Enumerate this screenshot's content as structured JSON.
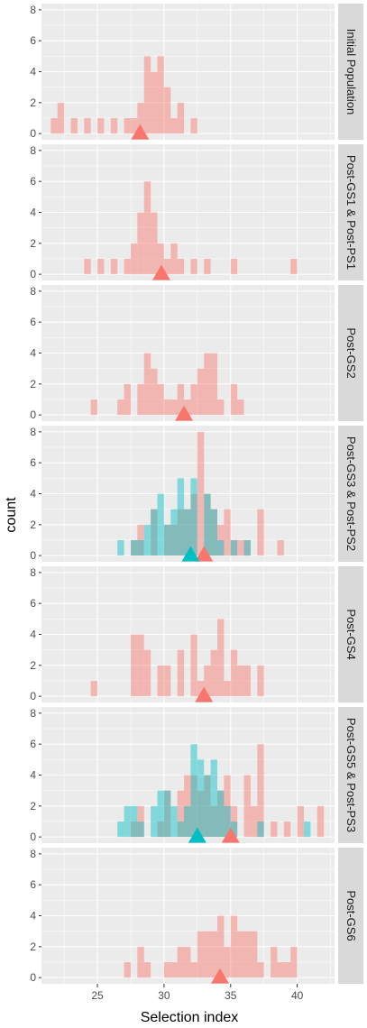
{
  "chart_data": {
    "type": "histogram",
    "xlabel": "Selection index",
    "ylabel": "count",
    "xlim": [
      20.8,
      42.8
    ],
    "ylim": [
      -0.4,
      8.4
    ],
    "x_ticks": [
      25,
      30,
      35,
      40
    ],
    "y_ticks": [
      0,
      2,
      4,
      6,
      8
    ],
    "bin_width": 0.5,
    "grid": true,
    "colors": {
      "series_a": "#F8766D",
      "series_b": "#00BFC4",
      "panel_bg": "#EBEBEB",
      "grid": "#FFFFFF",
      "strip_bg": "#D9D9D9"
    },
    "panels": [
      {
        "label": "Initial Population",
        "series": [
          {
            "key": "a",
            "color": "#F8766D",
            "bins": [
              [
                21.5,
                1
              ],
              [
                22,
                2
              ],
              [
                23,
                1
              ],
              [
                24,
                1
              ],
              [
                25,
                1
              ],
              [
                26,
                1
              ],
              [
                27,
                1
              ],
              [
                27.5,
                1
              ],
              [
                28,
                2
              ],
              [
                28.5,
                5
              ],
              [
                29,
                4
              ],
              [
                29.5,
                5
              ],
              [
                30,
                3
              ],
              [
                30.5,
                1
              ],
              [
                31,
                2
              ],
              [
                32,
                1
              ]
            ],
            "marker": 28.2
          }
        ]
      },
      {
        "label": "Post-GS1 & Post-PS1",
        "series": [
          {
            "key": "a",
            "color": "#F8766D",
            "bins": [
              [
                24,
                1
              ],
              [
                25,
                1
              ],
              [
                26,
                1
              ],
              [
                27,
                1
              ],
              [
                27.5,
                2
              ],
              [
                28,
                4
              ],
              [
                28.5,
                6
              ],
              [
                29,
                4
              ],
              [
                29.5,
                2
              ],
              [
                30,
                1
              ],
              [
                30.5,
                2
              ],
              [
                31,
                1
              ],
              [
                32,
                1
              ],
              [
                33,
                1
              ],
              [
                35,
                1
              ],
              [
                39.5,
                1
              ]
            ],
            "marker": 29.8
          }
        ]
      },
      {
        "label": "Post-GS2",
        "series": [
          {
            "key": "a",
            "color": "#F8766D",
            "bins": [
              [
                24.5,
                1
              ],
              [
                26.5,
                1
              ],
              [
                27,
                2
              ],
              [
                28,
                2
              ],
              [
                28.5,
                4
              ],
              [
                29,
                3
              ],
              [
                29.5,
                2
              ],
              [
                30,
                1
              ],
              [
                30.5,
                1
              ],
              [
                31,
                2
              ],
              [
                31.5,
                1
              ],
              [
                32,
                2
              ],
              [
                32.5,
                3
              ],
              [
                33,
                4
              ],
              [
                33.5,
                4
              ],
              [
                34,
                1
              ],
              [
                35,
                2
              ],
              [
                35.5,
                1
              ]
            ],
            "marker": 31.5
          }
        ]
      },
      {
        "label": "Post-GS3 & Post-PS2",
        "series": [
          {
            "key": "a",
            "color": "#F8766D",
            "bins": [
              [
                27.5,
                1
              ],
              [
                28,
                2
              ],
              [
                29,
                3
              ],
              [
                30,
                2
              ],
              [
                30.5,
                2
              ],
              [
                31,
                3
              ],
              [
                31.5,
                3
              ],
              [
                32,
                4
              ],
              [
                32.5,
                8
              ],
              [
                33,
                4
              ],
              [
                33.5,
                3
              ],
              [
                34,
                2
              ],
              [
                34.5,
                3
              ],
              [
                35,
                1
              ],
              [
                35.5,
                1
              ],
              [
                36,
                1
              ],
              [
                37,
                3
              ],
              [
                38.5,
                1
              ]
            ],
            "marker": 33.0
          },
          {
            "key": "b",
            "color": "#00BFC4",
            "bins": [
              [
                26.5,
                1
              ],
              [
                27.5,
                1
              ],
              [
                28,
                1
              ],
              [
                28.5,
                2
              ],
              [
                29,
                3
              ],
              [
                29.5,
                4
              ],
              [
                30,
                2
              ],
              [
                30.5,
                3
              ],
              [
                31,
                5
              ],
              [
                31.5,
                3
              ],
              [
                32,
                5
              ],
              [
                33,
                4
              ],
              [
                33.5,
                3
              ],
              [
                34,
                1
              ],
              [
                35,
                1
              ],
              [
                36,
                1
              ]
            ],
            "marker": 32.0
          }
        ]
      },
      {
        "label": "Post-GS4",
        "series": [
          {
            "key": "a",
            "color": "#F8766D",
            "bins": [
              [
                24.5,
                1
              ],
              [
                27.5,
                4
              ],
              [
                28,
                4
              ],
              [
                28.5,
                3
              ],
              [
                29.5,
                2
              ],
              [
                30,
                2
              ],
              [
                31,
                3
              ],
              [
                32,
                4
              ],
              [
                32.5,
                1
              ],
              [
                33,
                2
              ],
              [
                33.5,
                3
              ],
              [
                34,
                5
              ],
              [
                34.5,
                1
              ],
              [
                35,
                3
              ],
              [
                35.5,
                2
              ],
              [
                36,
                2
              ],
              [
                37,
                2
              ]
            ],
            "marker": 33.0
          }
        ]
      },
      {
        "label": "Post-GS5 & Post-PS3",
        "series": [
          {
            "key": "a",
            "color": "#F8766D",
            "bins": [
              [
                27.5,
                1
              ],
              [
                28,
                2
              ],
              [
                29.5,
                1
              ],
              [
                30,
                3
              ],
              [
                31,
                3
              ],
              [
                31.5,
                4
              ],
              [
                32,
                4
              ],
              [
                32.5,
                3
              ],
              [
                33,
                4
              ],
              [
                33.5,
                2
              ],
              [
                34,
                3
              ],
              [
                34.5,
                4
              ],
              [
                35,
                2
              ],
              [
                36,
                4
              ],
              [
                36.5,
                2
              ],
              [
                37,
                6
              ],
              [
                38,
                1
              ],
              [
                39,
                1
              ],
              [
                40,
                2
              ],
              [
                41.5,
                2
              ]
            ],
            "marker": 35.0
          },
          {
            "key": "b",
            "color": "#00BFC4",
            "bins": [
              [
                26.5,
                1
              ],
              [
                27,
                2
              ],
              [
                27.5,
                2
              ],
              [
                28,
                1
              ],
              [
                29,
                2
              ],
              [
                29.5,
                3
              ],
              [
                30,
                3
              ],
              [
                30.5,
                2
              ],
              [
                31,
                1
              ],
              [
                31.5,
                2
              ],
              [
                32,
                6
              ],
              [
                32.5,
                5
              ],
              [
                33,
                4
              ],
              [
                33.5,
                5
              ],
              [
                34,
                3
              ],
              [
                34.5,
                2
              ],
              [
                35,
                1
              ],
              [
                37,
                1
              ],
              [
                40.5,
                1
              ]
            ],
            "marker": 32.5
          }
        ]
      },
      {
        "label": "Post-GS6",
        "series": [
          {
            "key": "a",
            "color": "#F8766D",
            "bins": [
              [
                27,
                1
              ],
              [
                28,
                2
              ],
              [
                28.5,
                1
              ],
              [
                30,
                1
              ],
              [
                30.5,
                1
              ],
              [
                31,
                2
              ],
              [
                31.5,
                2
              ],
              [
                32,
                1
              ],
              [
                32.5,
                3
              ],
              [
                33,
                3
              ],
              [
                33.5,
                3
              ],
              [
                34,
                4
              ],
              [
                34.5,
                2
              ],
              [
                35,
                4
              ],
              [
                35.5,
                3
              ],
              [
                36,
                3
              ],
              [
                36.5,
                3
              ],
              [
                37,
                1
              ],
              [
                38,
                2
              ],
              [
                38.5,
                1
              ],
              [
                39,
                1
              ],
              [
                39.5,
                2
              ]
            ],
            "marker": 34.2
          }
        ]
      }
    ]
  }
}
